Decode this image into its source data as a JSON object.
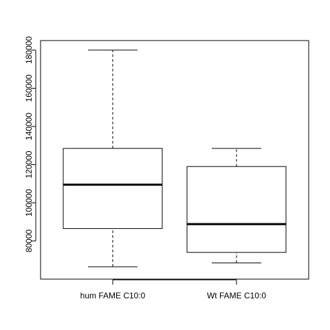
{
  "chart_data": {
    "type": "boxplot",
    "title": "",
    "xlabel": "",
    "ylabel": "",
    "ylim": [
      60000,
      185000
    ],
    "yticks": [
      80000,
      100000,
      120000,
      140000,
      160000,
      180000
    ],
    "yticks_text": [
      "80000",
      "100000",
      "120000",
      "140000",
      "160000",
      "180000"
    ],
    "grid": false,
    "legend": "none",
    "categories": [
      "hum FAME C10:0",
      "Wt FAME C10:0"
    ],
    "boxes": [
      {
        "name": "hum FAME C10:0",
        "min": 66500,
        "q1": 86500,
        "median": 109500,
        "q3": 128500,
        "max": 180000
      },
      {
        "name": "Wt FAME C10:0",
        "min": 68500,
        "q1": 74000,
        "median": 88800,
        "q3": 119000,
        "max": 128500
      }
    ]
  }
}
